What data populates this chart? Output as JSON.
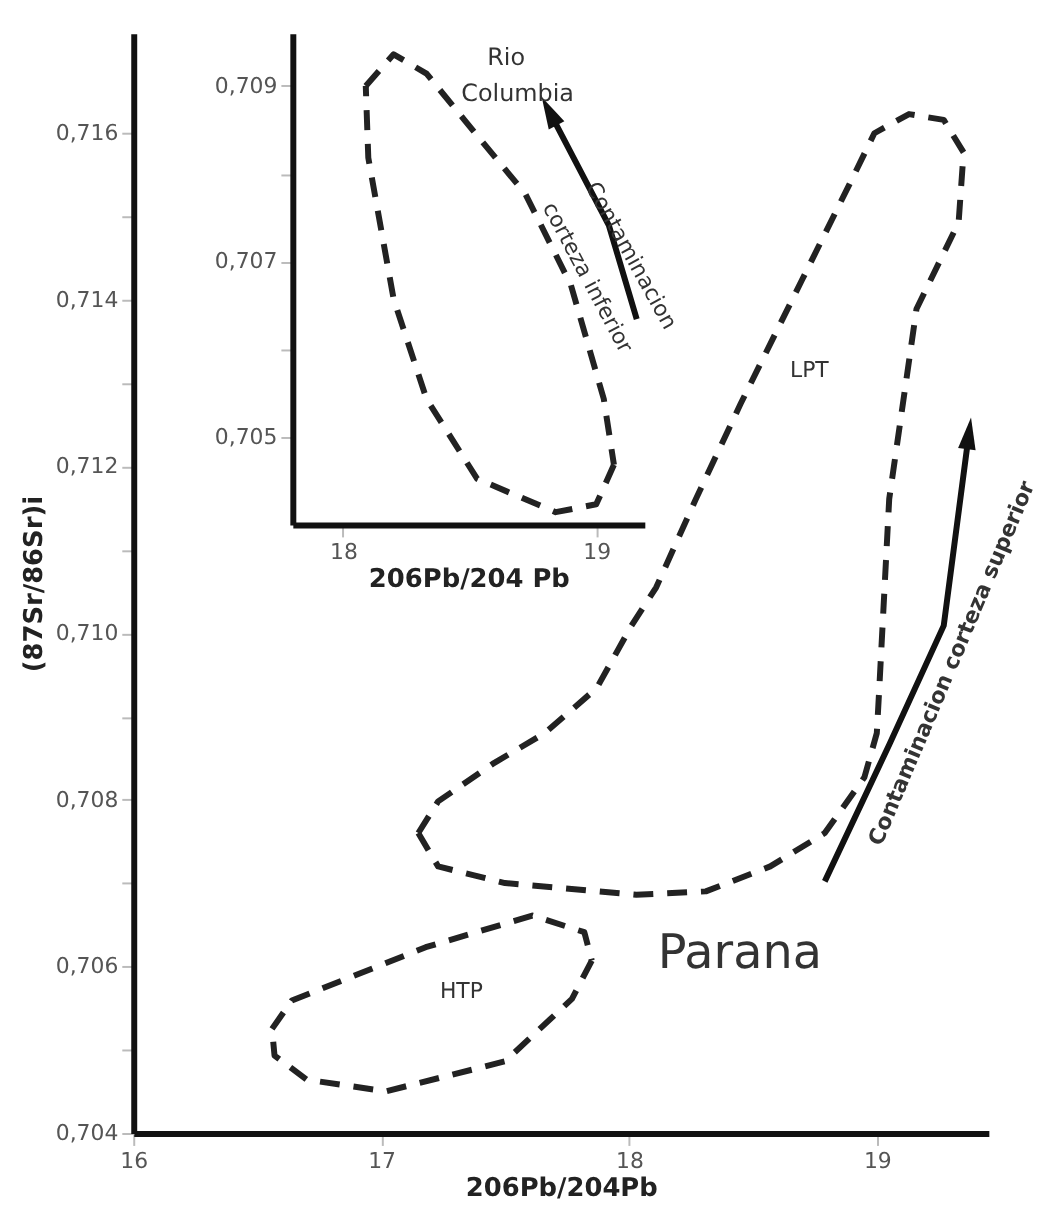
{
  "chart_data": [
    {
      "type": "line",
      "xlabel": "206Pb/204Pb",
      "ylabel": "(87Sr/86Sr)i",
      "xlim": [
        16,
        19.45
      ],
      "ylim": [
        0.704,
        0.7172
      ],
      "xticks": [
        16,
        17,
        18,
        19
      ],
      "yticks": [
        {
          "value": 0.704,
          "label": "0,704"
        },
        {
          "value": 0.705,
          "label": null
        },
        {
          "value": 0.706,
          "label": "0,706"
        },
        {
          "value": 0.707,
          "label": null
        },
        {
          "value": 0.708,
          "label": "0,708"
        },
        {
          "value": 0.709,
          "label": null
        },
        {
          "value": 0.71,
          "label": "0,710"
        },
        {
          "value": 0.711,
          "label": null
        },
        {
          "value": 0.712,
          "label": "0,712"
        },
        {
          "value": 0.713,
          "label": null
        },
        {
          "value": 0.714,
          "label": "0,714"
        },
        {
          "value": 0.715,
          "label": null
        },
        {
          "value": 0.716,
          "label": "0,716"
        }
      ],
      "series": [
        {
          "color": "#222222",
          "line_style": "dashed",
          "x": [
            17.15,
            17.23,
            17.5,
            18.03,
            18.31,
            18.57,
            18.79,
            18.95,
            19.0,
            19.01,
            19.05,
            19.16,
            19.33,
            19.35
          ],
          "values": [
            0.7076,
            0.7072,
            0.707,
            0.70686,
            0.7069,
            0.7072,
            0.7076,
            0.70827,
            0.7088,
            0.70934,
            0.71161,
            0.71389,
            0.71493,
            0.71577
          ]
        },
        {
          "color": "#222222",
          "line_style": "dashed",
          "x": [
            19.35,
            19.27,
            19.13,
            18.99,
            18.89,
            18.7,
            18.45,
            18.27,
            18.11,
            18.01,
            17.87,
            17.66,
            17.45,
            17.23,
            17.15
          ],
          "values": [
            0.71577,
            0.71616,
            0.71623,
            0.716,
            0.71539,
            0.71425,
            0.71275,
            0.71161,
            0.71055,
            0.71009,
            0.70934,
            0.7088,
            0.70843,
            0.70798,
            0.7076
          ]
        },
        {
          "color": "#222222",
          "line_style": "dashed",
          "x": [
            16.56,
            16.64,
            17.18,
            17.61,
            17.82,
            17.85
          ],
          "values": [
            0.70525,
            0.70559,
            0.70623,
            0.70661,
            0.70641,
            0.70607
          ]
        },
        {
          "color": "#222222",
          "line_style": "dashed",
          "x": [
            17.85,
            17.77,
            17.5,
            17.02,
            16.7,
            16.57,
            16.56
          ],
          "values": [
            0.70607,
            0.70561,
            0.70486,
            0.7045,
            0.70464,
            0.70493,
            0.70525
          ]
        },
        {
          "color": "#111111",
          "line_style": "solid",
          "x": [
            18.79,
            19.05,
            19.27,
            19.37
          ],
          "values": [
            0.70702,
            0.70866,
            0.71009,
            0.71236
          ]
        }
      ],
      "annotations": [
        "LPT",
        "HTP",
        "Parana",
        "Contaminacion corteza superior"
      ]
    },
    {
      "type": "line",
      "xlabel": "206Pb/204 Pb",
      "xlim": [
        17.8,
        19.19
      ],
      "ylim": [
        0.704,
        0.7096
      ],
      "xticks": [
        18,
        19
      ],
      "yticks": [
        {
          "value": 0.705,
          "label": "0,705"
        },
        {
          "value": 0.706,
          "label": null
        },
        {
          "value": 0.707,
          "label": "0,707"
        },
        {
          "value": 0.708,
          "label": null
        },
        {
          "value": 0.709,
          "label": "0,709"
        }
      ],
      "series": [
        {
          "color": "#222222",
          "line_style": "dashed",
          "x": [
            18.09,
            18.2,
            18.33,
            18.48,
            18.72,
            18.9,
            19.03,
            19.07
          ],
          "values": [
            0.709,
            0.70936,
            0.70914,
            0.70861,
            0.70777,
            0.70673,
            0.70543,
            0.70468
          ]
        },
        {
          "color": "#222222",
          "line_style": "dashed",
          "x": [
            19.07,
            19.0,
            18.84,
            18.53,
            18.33,
            18.2,
            18.1,
            18.09
          ],
          "values": [
            0.70468,
            0.70423,
            0.70414,
            0.70452,
            0.70543,
            0.70657,
            0.70818,
            0.709
          ]
        },
        {
          "color": "#111111",
          "line_style": "solid",
          "x": [
            19.16,
            19.05,
            18.82
          ],
          "values": [
            0.70634,
            0.70741,
            0.70868
          ]
        }
      ],
      "annotations": [
        "Rio",
        "Columbia",
        "Contaminacion",
        "corteza inferior"
      ]
    }
  ]
}
